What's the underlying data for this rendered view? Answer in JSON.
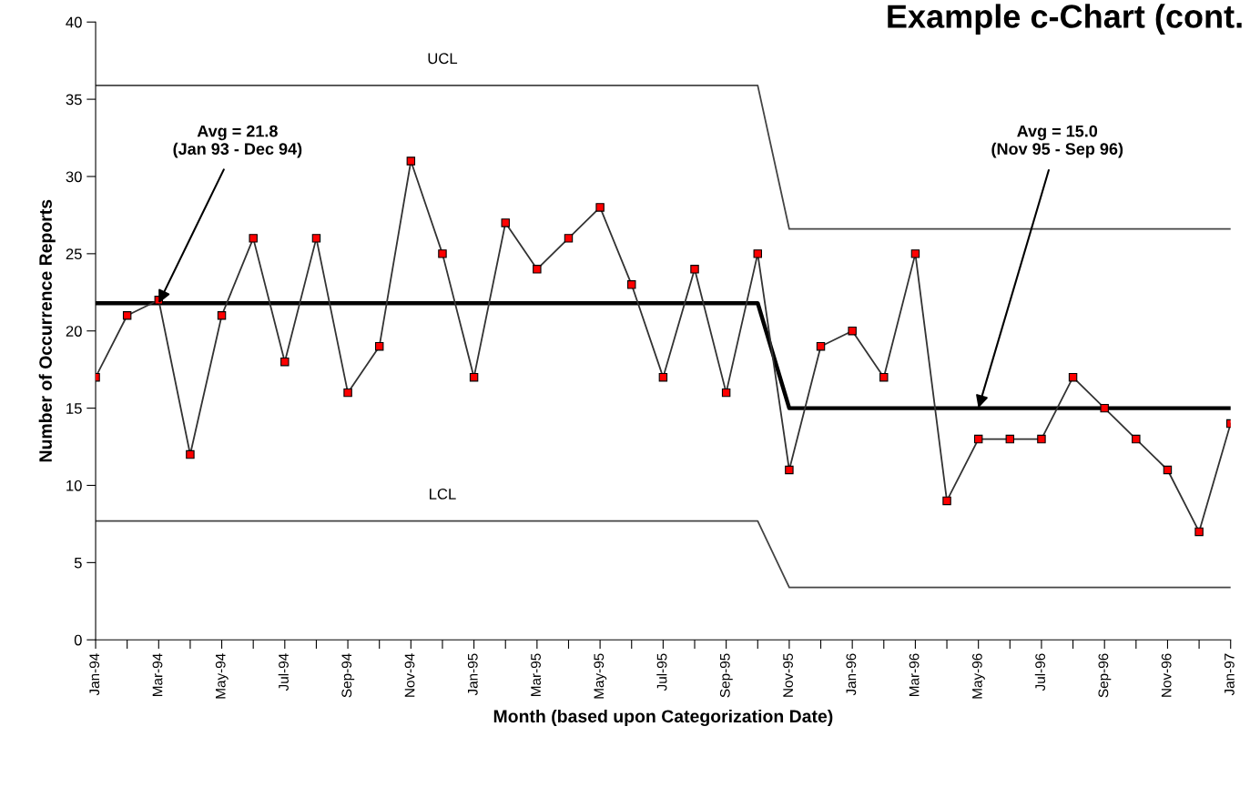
{
  "chart_data": {
    "type": "line",
    "title": "Example c-Chart (cont.",
    "xlabel": "Month (based upon Categorization Date)",
    "ylabel": "Number of Occurrence Reports",
    "categories": [
      "Jan-94",
      null,
      "Mar-94",
      null,
      "May-94",
      null,
      "Jul-94",
      null,
      "Sep-94",
      null,
      "Nov-94",
      null,
      "Jan-95",
      null,
      "Mar-95",
      null,
      "May-95",
      null,
      "Jul-95",
      null,
      "Sep-95",
      null,
      "Nov-95",
      null,
      "Jan-96",
      null,
      "Mar-96",
      null,
      "May-96",
      null,
      "Jul-96",
      null,
      "Sep-96",
      null,
      "Nov-96",
      null,
      "Jan-97"
    ],
    "series": [
      {
        "color": "#ff0000",
        "marker": "square",
        "values": [
          17,
          21,
          22,
          12,
          21,
          26,
          18,
          26,
          16,
          19,
          31,
          25,
          17,
          27,
          24,
          26,
          28,
          23,
          17,
          24,
          16,
          25,
          11,
          19,
          20,
          17,
          25,
          9,
          13,
          13,
          13,
          17,
          15,
          13,
          11,
          7,
          14
        ]
      },
      {
        "name": "UCL",
        "color": "#444444",
        "marker": "none",
        "values": [
          35.9,
          35.9,
          35.9,
          35.9,
          35.9,
          35.9,
          35.9,
          35.9,
          35.9,
          35.9,
          35.9,
          35.9,
          35.9,
          35.9,
          35.9,
          35.9,
          35.9,
          35.9,
          35.9,
          35.9,
          35.9,
          35.9,
          26.6,
          26.6,
          26.6,
          26.6,
          26.6,
          26.6,
          26.6,
          26.6,
          26.6,
          26.6,
          26.6,
          26.6,
          26.6,
          26.6,
          26.6
        ]
      },
      {
        "color": "#000000",
        "marker": "none",
        "values": [
          21.8,
          21.8,
          21.8,
          21.8,
          21.8,
          21.8,
          21.8,
          21.8,
          21.8,
          21.8,
          21.8,
          21.8,
          21.8,
          21.8,
          21.8,
          21.8,
          21.8,
          21.8,
          21.8,
          21.8,
          21.8,
          21.8,
          15.0,
          15.0,
          15.0,
          15.0,
          15.0,
          15.0,
          15.0,
          15.0,
          15.0,
          15.0,
          15.0,
          15.0,
          15.0,
          15.0,
          15.0
        ]
      },
      {
        "name": "LCL",
        "color": "#444444",
        "marker": "none",
        "values": [
          7.7,
          7.7,
          7.7,
          7.7,
          7.7,
          7.7,
          7.7,
          7.7,
          7.7,
          7.7,
          7.7,
          7.7,
          7.7,
          7.7,
          7.7,
          7.7,
          7.7,
          7.7,
          7.7,
          7.7,
          7.7,
          7.7,
          3.4,
          3.4,
          3.4,
          3.4,
          3.4,
          3.4,
          3.4,
          3.4,
          3.4,
          3.4,
          3.4,
          3.4,
          3.4,
          3.4,
          3.4
        ]
      }
    ],
    "annotations": [
      {
        "text": "Avg = 21.8\n(Jan 93 - Dec 94)",
        "x": "Mar-94",
        "y": 21.8
      },
      {
        "text": "Avg = 15.0\n(Nov 95 - Sep 96)",
        "x": "May-96",
        "y": 15.0
      }
    ],
    "ylim": [
      0,
      40
    ],
    "yticks": [
      0,
      5,
      10,
      15,
      20,
      25,
      30,
      35,
      40
    ],
    "grid": false,
    "line_style": "solid"
  }
}
